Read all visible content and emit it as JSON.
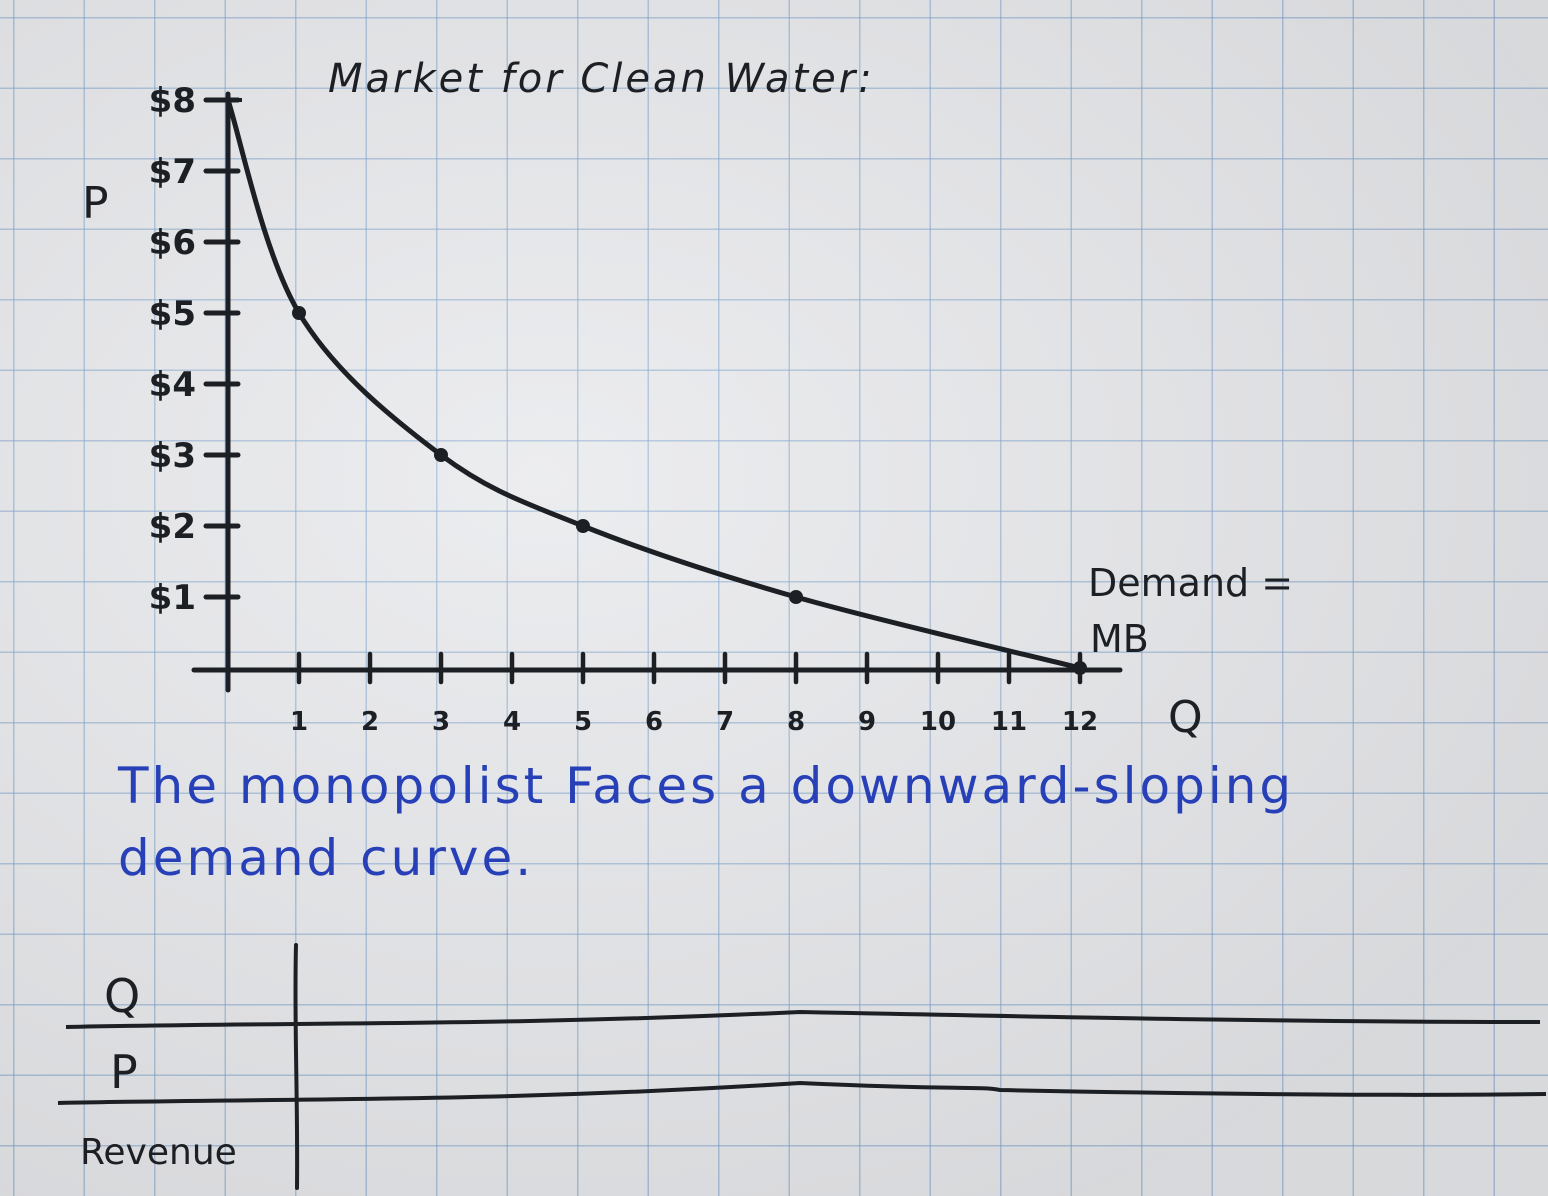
{
  "chart_data": {
    "type": "line",
    "title": "Market for Clean Water:",
    "xlabel": "Q",
    "ylabel": "P",
    "x_ticks": [
      "1",
      "2",
      "3",
      "4",
      "5",
      "6",
      "7",
      "8",
      "9",
      "10",
      "11",
      "12"
    ],
    "y_ticks": [
      "$1",
      "$2",
      "$3",
      "$4",
      "$5",
      "$6",
      "$7",
      "$8"
    ],
    "xlim": [
      0,
      12
    ],
    "ylim": [
      0,
      8
    ],
    "series": [
      {
        "name": "Demand = MB",
        "x": [
          0,
          1,
          3,
          5,
          8,
          12
        ],
        "y": [
          8,
          5,
          3,
          2,
          1,
          0
        ]
      }
    ],
    "grid": true
  },
  "curve_label_line1": "Demand =",
  "curve_label_line2": "MB",
  "caption": "The monopolist Faces a downward-sloping demand curve.",
  "table": {
    "rows": [
      "Q",
      "P",
      "Revenue"
    ]
  },
  "colors": {
    "ink": "#1c1f24",
    "caption_ink": "#2740b7",
    "grid": "#78a0cd",
    "paper": "#e8e9ec"
  }
}
